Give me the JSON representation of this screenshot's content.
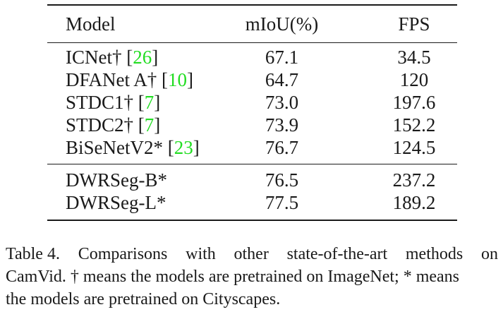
{
  "table": {
    "headers": {
      "model": "Model",
      "miou": "mIoU(%)",
      "fps": "FPS"
    },
    "group1": [
      {
        "model": "ICNet†",
        "cite": "26",
        "miou": "67.1",
        "fps": "34.5"
      },
      {
        "model": "DFANet A†",
        "cite": "10",
        "miou": "64.7",
        "fps": "120"
      },
      {
        "model": "STDC1†",
        "cite": "7",
        "miou": "73.0",
        "fps": "197.6"
      },
      {
        "model": "STDC2†",
        "cite": "7",
        "miou": "73.9",
        "fps": "152.2"
      },
      {
        "model": "BiSeNetV2*",
        "cite": "23",
        "miou": "76.7",
        "fps": "124.5"
      }
    ],
    "group2": [
      {
        "model": "DWRSeg-B*",
        "miou": "76.5",
        "fps": "237.2"
      },
      {
        "model": "DWRSeg-L*",
        "miou": "77.5",
        "fps": "189.2"
      }
    ]
  },
  "caption": {
    "label": "Table 4.",
    "line1_words": [
      "Comparisons",
      "with",
      "other",
      "state-of-the-art",
      "methods",
      "on"
    ],
    "line2": "CamVid. † means the models are pretrained on ImageNet; * means",
    "line3": "the models are pretrained on Cityscapes."
  },
  "colors": {
    "citation": "#22dd22",
    "text": "#1a1a1a"
  }
}
